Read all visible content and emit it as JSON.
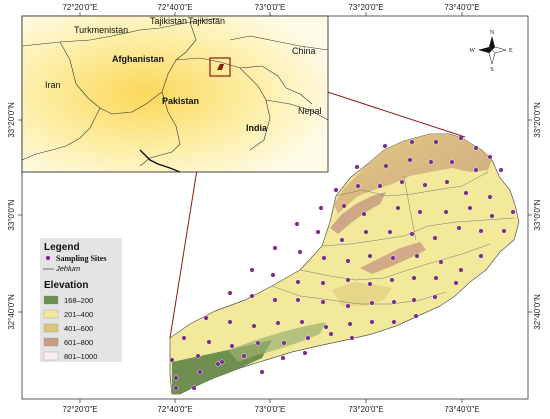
{
  "colors": {
    "elev_1": "#6e8f4f",
    "elev_2": "#f2ea9a",
    "elev_3": "#ddc479",
    "elev_4": "#c89b82",
    "elev_5": "#fbeef2",
    "site": "#7a2f8a",
    "inset_border": "#8b1a10",
    "inset_bg": "#fdf6c8"
  },
  "axes": {
    "top_labels": [
      "72°20'0\"E",
      "72°40'0\"E",
      "73°0'0\"E",
      "73°20'0\"E",
      "73°40'0\"E"
    ],
    "bottom_labels": [
      "72°20'0\"E",
      "72°40'0\"E",
      "73°0'0\"E",
      "73°20'0\"E",
      "73°40'0\"E"
    ],
    "left_labels": [
      "33°20'0\"N",
      "33°0'0\"N",
      "32°40'0\"N"
    ],
    "right_labels": [
      "33°20'0\"N",
      "33°0'0\"N",
      "32°40'0\"N"
    ]
  },
  "inset": {
    "countries": [
      {
        "name": "Turkmenistan"
      },
      {
        "name": "Tajikistan"
      },
      {
        "name": "Tajikistan"
      },
      {
        "name": "Afghanistan"
      },
      {
        "name": "China"
      },
      {
        "name": "Iran"
      },
      {
        "name": "Pakistan"
      },
      {
        "name": "Nepal"
      },
      {
        "name": "India"
      }
    ]
  },
  "compass": {
    "n": "N",
    "s": "S",
    "e": "E",
    "w": "W"
  },
  "legend": {
    "title": "Legend",
    "sites_label": "Sampling Sites",
    "river_label": "Jehlum",
    "elevation_title": "Elevation",
    "classes": [
      "168–200",
      "201–400",
      "401–600",
      "601–800",
      "801–1000"
    ]
  },
  "sites": [
    [
      385,
      146
    ],
    [
      412,
      142
    ],
    [
      436,
      142
    ],
    [
      461,
      138
    ],
    [
      476,
      148
    ],
    [
      490,
      157
    ],
    [
      357,
      167
    ],
    [
      386,
      166
    ],
    [
      410,
      160
    ],
    [
      431,
      162
    ],
    [
      452,
      162
    ],
    [
      476,
      170
    ],
    [
      501,
      170
    ],
    [
      336,
      190
    ],
    [
      358,
      186
    ],
    [
      380,
      186
    ],
    [
      402,
      182
    ],
    [
      425,
      185
    ],
    [
      447,
      182
    ],
    [
      466,
      193
    ],
    [
      490,
      197
    ],
    [
      513,
      212
    ],
    [
      321,
      208
    ],
    [
      344,
      206
    ],
    [
      364,
      214
    ],
    [
      398,
      208
    ],
    [
      420,
      212
    ],
    [
      446,
      212
    ],
    [
      470,
      208
    ],
    [
      492,
      216
    ],
    [
      297,
      224
    ],
    [
      318,
      232
    ],
    [
      342,
      240
    ],
    [
      366,
      232
    ],
    [
      390,
      232
    ],
    [
      412,
      234
    ],
    [
      435,
      238
    ],
    [
      459,
      228
    ],
    [
      481,
      231
    ],
    [
      504,
      231
    ],
    [
      275,
      248
    ],
    [
      300,
      252
    ],
    [
      324,
      258
    ],
    [
      348,
      261
    ],
    [
      370,
      256
    ],
    [
      393,
      258
    ],
    [
      417,
      256
    ],
    [
      441,
      262
    ],
    [
      461,
      270
    ],
    [
      481,
      256
    ],
    [
      252,
      270
    ],
    [
      273,
      275
    ],
    [
      298,
      282
    ],
    [
      323,
      283
    ],
    [
      348,
      280
    ],
    [
      370,
      284
    ],
    [
      392,
      280
    ],
    [
      414,
      278
    ],
    [
      436,
      278
    ],
    [
      456,
      283
    ],
    [
      230,
      293
    ],
    [
      252,
      296
    ],
    [
      275,
      300
    ],
    [
      298,
      300
    ],
    [
      323,
      302
    ],
    [
      348,
      306
    ],
    [
      372,
      303
    ],
    [
      394,
      302
    ],
    [
      414,
      300
    ],
    [
      435,
      297
    ],
    [
      206,
      318
    ],
    [
      230,
      322
    ],
    [
      254,
      326
    ],
    [
      278,
      323
    ],
    [
      302,
      322
    ],
    [
      326,
      327
    ],
    [
      350,
      324
    ],
    [
      372,
      322
    ],
    [
      394,
      322
    ],
    [
      416,
      316
    ],
    [
      184,
      338
    ],
    [
      209,
      342
    ],
    [
      232,
      346
    ],
    [
      258,
      343
    ],
    [
      284,
      343
    ],
    [
      308,
      338
    ],
    [
      331,
      334
    ],
    [
      352,
      338
    ],
    [
      244,
      356
    ],
    [
      283,
      358
    ],
    [
      172,
      360
    ],
    [
      198,
      356
    ],
    [
      222,
      362
    ],
    [
      262,
      372
    ],
    [
      305,
      353
    ],
    [
      176,
      378
    ],
    [
      200,
      372
    ],
    [
      176,
      388
    ],
    [
      194,
      388
    ],
    [
      218,
      364
    ]
  ]
}
